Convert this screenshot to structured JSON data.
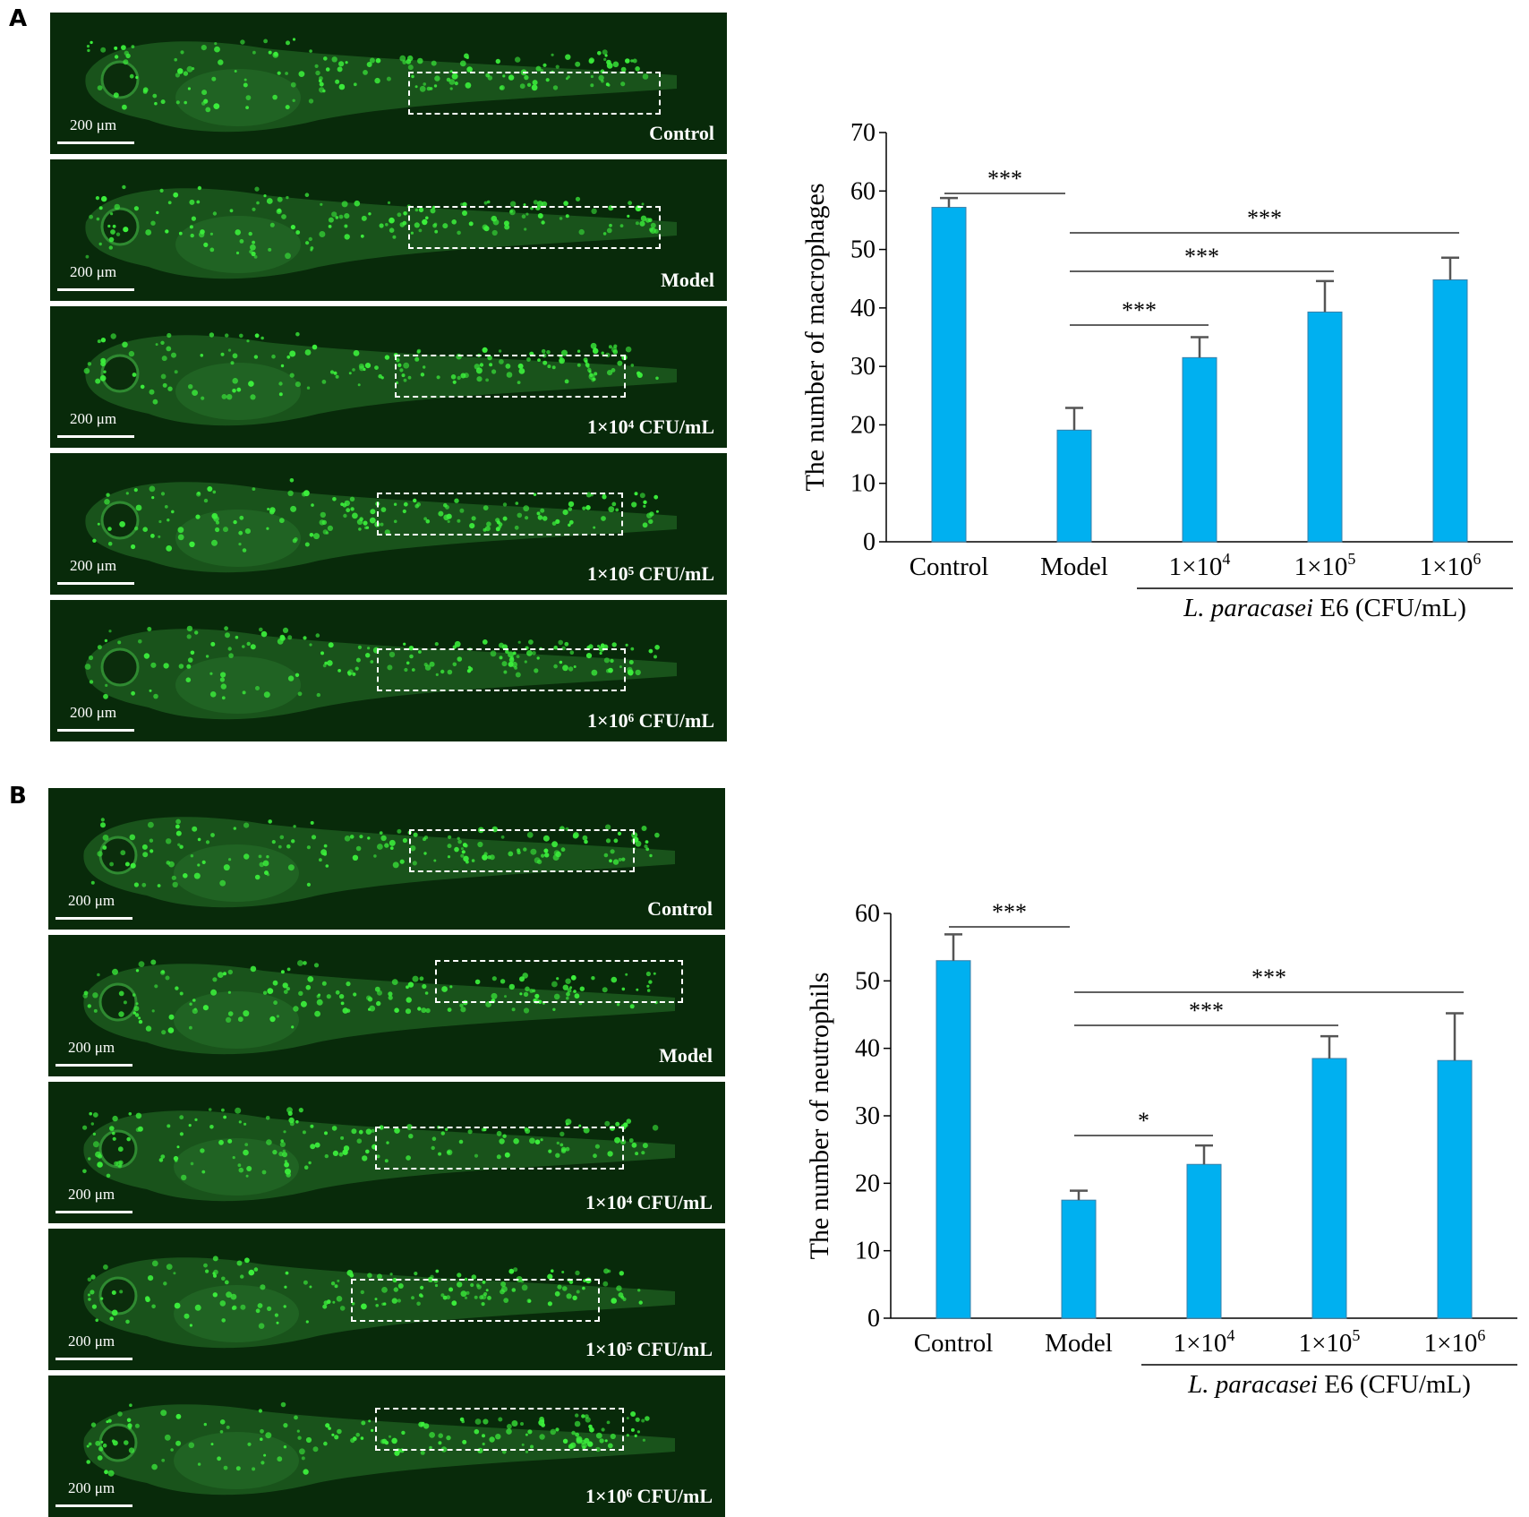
{
  "panels": [
    {
      "letter": "A",
      "images": [
        {
          "scale": "200 μm",
          "label": "Control"
        },
        {
          "scale": "200 μm",
          "label": "Model"
        },
        {
          "scale": "200 μm",
          "label": "1×10⁴ CFU/mL"
        },
        {
          "scale": "200 μm",
          "label": "1×10⁵ CFU/mL"
        },
        {
          "scale": "200 μm",
          "label": "1×10⁶ CFU/mL"
        }
      ]
    },
    {
      "letter": "B",
      "images": [
        {
          "scale": "200 μm",
          "label": "Control"
        },
        {
          "scale": "200 μm",
          "label": "Model"
        },
        {
          "scale": "200 μm",
          "label": "1×10⁴ CFU/mL"
        },
        {
          "scale": "200 μm",
          "label": "1×10⁵ CFU/mL"
        },
        {
          "scale": "200 μm",
          "label": "1×10⁶ CFU/mL"
        }
      ]
    }
  ],
  "chart_data": [
    {
      "type": "bar",
      "ylabel": "The number of macrophages",
      "ylim": [
        0,
        70
      ],
      "yticks": [
        0,
        10,
        20,
        30,
        40,
        50,
        60,
        70
      ],
      "categories": [
        "Control",
        "Model",
        "1×10",
        "1×10",
        "1×10"
      ],
      "category_exponents": [
        "",
        "",
        "4",
        "5",
        "6"
      ],
      "values": [
        57.2,
        19.1,
        31.5,
        39.3,
        44.8
      ],
      "errors": [
        1.6,
        3.8,
        3.5,
        5.3,
        3.8
      ],
      "group_label_italic": "L. paracasei",
      "group_label_rest": " E6 (CFU/mL)",
      "bar_color": "#00b0f0",
      "significance": [
        {
          "from": 0,
          "to": 1,
          "stars": "***"
        },
        {
          "from": 1,
          "to": 4,
          "stars": "***"
        },
        {
          "from": 1,
          "to": 3,
          "stars": "***"
        },
        {
          "from": 1,
          "to": 2,
          "stars": "***"
        }
      ]
    },
    {
      "type": "bar",
      "ylabel": "The number of neutrophils",
      "ylim": [
        0,
        60
      ],
      "yticks": [
        0,
        10,
        20,
        30,
        40,
        50,
        60
      ],
      "categories": [
        "Control",
        "Model",
        "1×10",
        "1×10",
        "1×10"
      ],
      "category_exponents": [
        "",
        "",
        "4",
        "5",
        "6"
      ],
      "values": [
        53.0,
        17.5,
        22.8,
        38.5,
        38.2
      ],
      "errors": [
        3.9,
        1.4,
        2.8,
        3.3,
        7.0
      ],
      "group_label_italic": "L. paracasei",
      "group_label_rest": " E6 (CFU/mL)",
      "bar_color": "#00b0f0",
      "significance": [
        {
          "from": 0,
          "to": 1,
          "stars": "***"
        },
        {
          "from": 1,
          "to": 4,
          "stars": "***"
        },
        {
          "from": 1,
          "to": 3,
          "stars": "***"
        },
        {
          "from": 1,
          "to": 2,
          "stars": "*"
        }
      ]
    }
  ]
}
